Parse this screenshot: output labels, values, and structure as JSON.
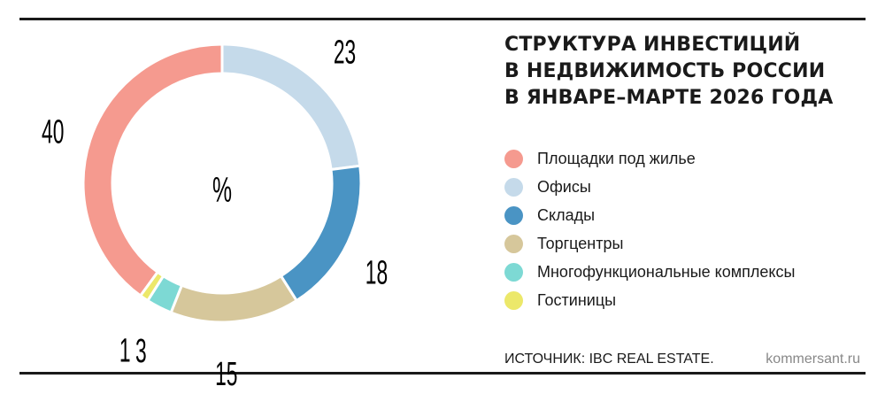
{
  "chart_data": {
    "type": "pie",
    "variant": "donut",
    "unit_label": "%",
    "title_lines": [
      "СТРУКТУРА ИНВЕСТИЦИЙ",
      "В НЕДВИЖИМОСТЬ РОССИИ",
      "В ЯНВАРЕ–МАРТЕ 2026 ГОДА"
    ],
    "slices": [
      {
        "label": "Площадки под жилье",
        "value": 40,
        "color": "#f59a8f"
      },
      {
        "label": "Офисы",
        "value": 23,
        "color": "#c5daea"
      },
      {
        "label": "Склады",
        "value": 18,
        "color": "#4a94c4"
      },
      {
        "label": "Торгцентры",
        "value": 15,
        "color": "#d6c79b"
      },
      {
        "label": "Многофункциональные комплексы",
        "value": 3,
        "color": "#7dd9d4"
      },
      {
        "label": "Гостиницы",
        "value": 1,
        "color": "#ece86a"
      }
    ],
    "legend_position": "right"
  },
  "source": "ИСТОЧНИК: IBC REAL ESTATE.",
  "site": "kommersant.ru"
}
